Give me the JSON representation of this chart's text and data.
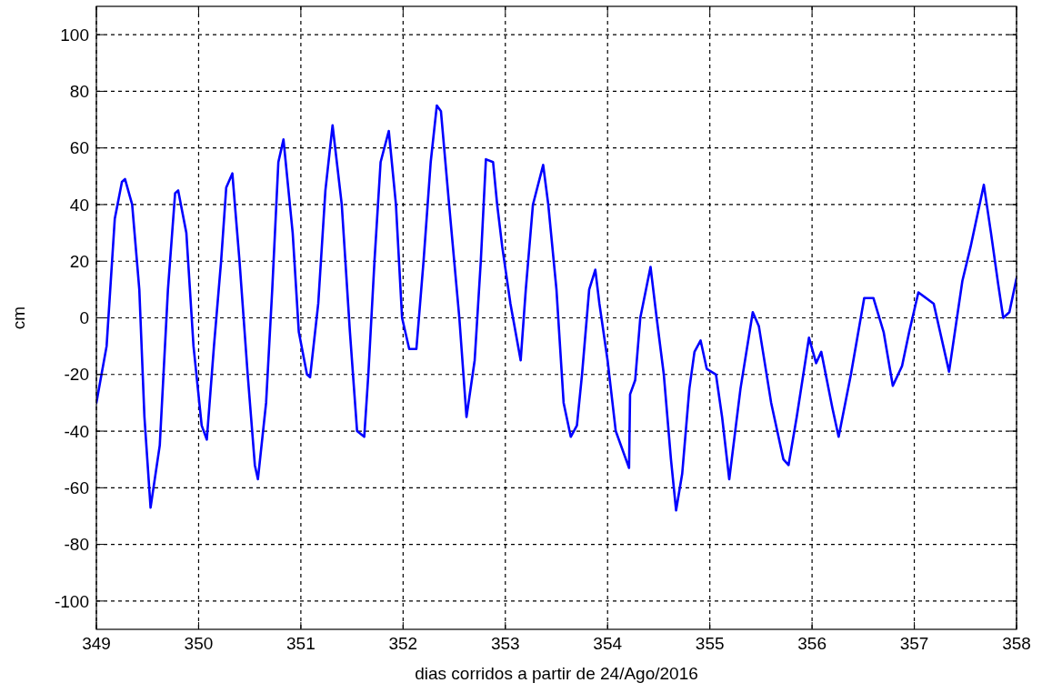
{
  "chart_data": {
    "type": "line",
    "xlabel": "dias corridos a partir de 24/Ago/2016",
    "ylabel": "cm",
    "xlim": [
      349,
      358
    ],
    "xticks": [
      349,
      350,
      351,
      352,
      353,
      354,
      355,
      356,
      357,
      358
    ],
    "ylim": [
      -110,
      110
    ],
    "yticks": [
      -100,
      -80,
      -60,
      -40,
      -20,
      0,
      20,
      40,
      60,
      80,
      100
    ],
    "grid": true,
    "marker": "none",
    "line_style": "solid",
    "series": [
      {
        "color": "#0000ff",
        "x": [
          349.0,
          349.1,
          349.18,
          349.25,
          349.28,
          349.35,
          349.42,
          349.47,
          349.53,
          349.62,
          349.7,
          349.77,
          349.8,
          349.88,
          349.95,
          350.03,
          350.08,
          350.15,
          350.22,
          350.27,
          350.33,
          350.4,
          350.48,
          350.55,
          350.58,
          350.66,
          350.72,
          350.78,
          350.83,
          350.92,
          350.98,
          351.06,
          351.09,
          351.17,
          351.24,
          351.31,
          351.4,
          351.48,
          351.55,
          351.62,
          351.66,
          351.72,
          351.78,
          351.86,
          351.93,
          351.99,
          352.06,
          352.13,
          352.2,
          352.27,
          352.33,
          352.37,
          352.45,
          352.55,
          352.62,
          352.7,
          352.76,
          352.81,
          352.88,
          352.92,
          352.97,
          353.05,
          353.15,
          353.2,
          353.27,
          353.37,
          353.42,
          353.5,
          353.57,
          353.64,
          353.7,
          353.75,
          353.82,
          353.88,
          353.92,
          354.0,
          354.08,
          354.21,
          354.22,
          354.27,
          354.32,
          354.42,
          354.48,
          354.55,
          354.62,
          354.67,
          354.73,
          354.8,
          354.85,
          354.91,
          354.97,
          355.06,
          355.12,
          355.19,
          355.3,
          355.42,
          355.48,
          355.6,
          355.72,
          355.77,
          355.85,
          355.97,
          356.04,
          356.09,
          356.2,
          356.26,
          356.38,
          356.51,
          356.6,
          356.7,
          356.79,
          356.88,
          356.95,
          357.04,
          357.19,
          357.34,
          357.47,
          357.55,
          357.68,
          357.75,
          357.82,
          357.87,
          357.93,
          358.0
        ],
        "values": [
          -30,
          -10,
          35,
          48,
          49,
          40,
          10,
          -35,
          -67,
          -45,
          10,
          44,
          45,
          30,
          -10,
          -38,
          -43,
          -10,
          20,
          46,
          51,
          20,
          -20,
          -52,
          -57,
          -30,
          10,
          55,
          63,
          30,
          -5,
          -20,
          -21,
          5,
          45,
          68,
          40,
          -5,
          -40,
          -42,
          -20,
          20,
          55,
          66,
          40,
          0,
          -11,
          -11,
          20,
          55,
          75,
          73,
          40,
          0,
          -35,
          -15,
          20,
          56,
          55,
          40,
          25,
          5,
          -15,
          10,
          40,
          54,
          40,
          10,
          -30,
          -42,
          -38,
          -20,
          10,
          17,
          5,
          -15,
          -40,
          -53,
          -27,
          -22,
          0,
          18,
          0,
          -20,
          -50,
          -68,
          -55,
          -25,
          -12,
          -8,
          -18,
          -20,
          -35,
          -57,
          -25,
          2,
          -3,
          -30,
          -50,
          -52,
          -35,
          -7,
          -16,
          -12,
          -32,
          -42,
          -20,
          7,
          7,
          -5,
          -24,
          -17,
          -5,
          9,
          5,
          -19,
          13,
          25,
          47,
          30,
          12,
          0,
          2,
          14
        ]
      }
    ]
  }
}
